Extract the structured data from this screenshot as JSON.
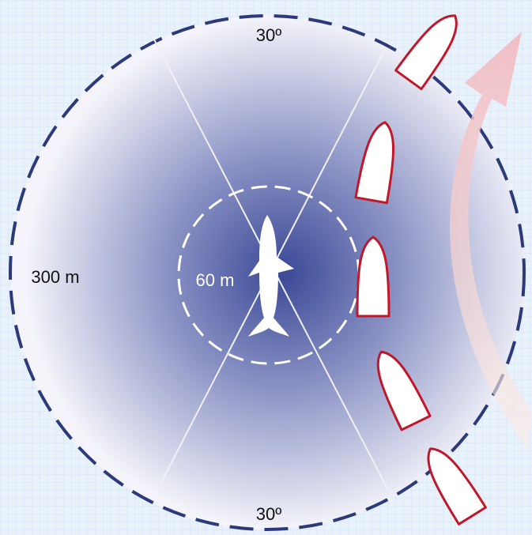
{
  "labels": {
    "top_angle": "30º",
    "bottom_angle": "30º",
    "outer_radius": "300 m",
    "inner_radius": "60 m"
  }
}
